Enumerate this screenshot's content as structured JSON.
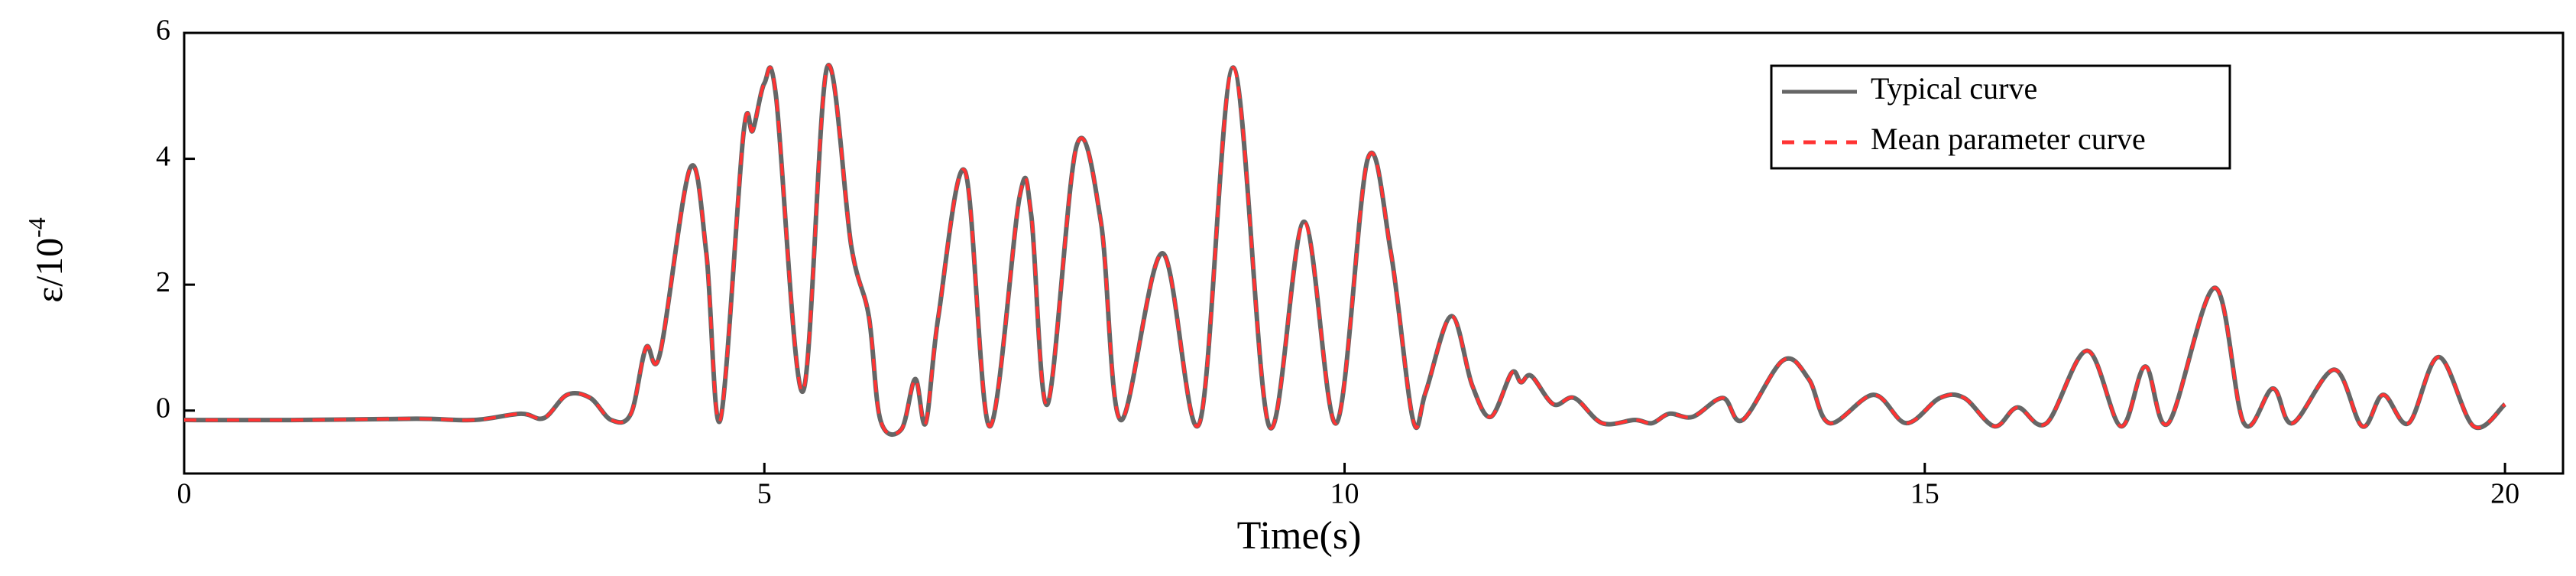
{
  "chart_data": {
    "type": "line",
    "xlabel": "Time(s)",
    "ylabel": "ε/10",
    "ylabel_superscript": "-4",
    "x": [
      0,
      1,
      2,
      2.5,
      2.9,
      3.1,
      3.3,
      3.5,
      3.68,
      3.85,
      3.98,
      4.1,
      4.36,
      4.5,
      4.62,
      4.82,
      4.9,
      5.0,
      5.1,
      5.33,
      5.54,
      5.75,
      5.9,
      6.0,
      6.18,
      6.3,
      6.39,
      6.5,
      6.73,
      6.94,
      7.2,
      7.3,
      7.44,
      7.69,
      7.9,
      8.07,
      8.43,
      8.75,
      9.04,
      9.35,
      9.65,
      9.93,
      10.2,
      10.4,
      10.59,
      10.7,
      10.92,
      11.1,
      11.26,
      11.44,
      11.52,
      11.61,
      11.8,
      11.98,
      12.22,
      12.5,
      12.65,
      12.8,
      13.0,
      13.26,
      13.43,
      13.78,
      14.0,
      14.18,
      14.56,
      14.84,
      15.13,
      15.34,
      15.6,
      15.8,
      16.05,
      16.4,
      16.69,
      16.9,
      17.1,
      17.5,
      17.75,
      18.0,
      18.17,
      18.53,
      18.77,
      18.95,
      19.17,
      19.43,
      19.73,
      20.0
    ],
    "series": [
      {
        "name": "Typical curve",
        "color": "#666666",
        "style": "solid",
        "values": [
          -0.15,
          -0.15,
          -0.13,
          -0.15,
          -0.05,
          -0.12,
          0.25,
          0.2,
          -0.15,
          -0.05,
          1.0,
          0.9,
          3.85,
          2.5,
          -0.15,
          4.4,
          4.45,
          5.2,
          5.0,
          0.3,
          5.45,
          2.6,
          1.5,
          -0.15,
          -0.3,
          0.5,
          -0.2,
          1.5,
          3.8,
          -0.25,
          3.4,
          3.1,
          0.1,
          4.2,
          3.0,
          -0.15,
          2.5,
          -0.2,
          5.45,
          -0.25,
          3.0,
          -0.2,
          4.0,
          2.5,
          -0.15,
          0.3,
          1.5,
          0.4,
          -0.1,
          0.6,
          0.45,
          0.55,
          0.1,
          0.2,
          -0.2,
          -0.15,
          -0.2,
          -0.05,
          -0.1,
          0.2,
          -0.15,
          0.8,
          0.5,
          -0.2,
          0.25,
          -0.2,
          0.2,
          0.2,
          -0.25,
          0.05,
          -0.2,
          0.95,
          -0.25,
          0.7,
          -0.2,
          1.95,
          -0.2,
          0.35,
          -0.2,
          0.65,
          -0.25,
          0.25,
          -0.2,
          0.85,
          -0.25,
          0.1
        ]
      },
      {
        "name": "Mean parameter curve",
        "color": "#ff3333",
        "style": "dashed",
        "values": [
          -0.15,
          -0.15,
          -0.13,
          -0.15,
          -0.05,
          -0.12,
          0.25,
          0.2,
          -0.15,
          -0.05,
          1.0,
          0.9,
          3.85,
          2.5,
          -0.15,
          4.4,
          4.45,
          5.2,
          5.0,
          0.3,
          5.45,
          2.6,
          1.5,
          -0.15,
          -0.3,
          0.5,
          -0.2,
          1.5,
          3.8,
          -0.25,
          3.4,
          3.1,
          0.1,
          4.2,
          3.0,
          -0.15,
          2.5,
          -0.2,
          5.45,
          -0.25,
          3.0,
          -0.2,
          4.0,
          2.5,
          -0.15,
          0.3,
          1.5,
          0.4,
          -0.1,
          0.6,
          0.45,
          0.55,
          0.1,
          0.2,
          -0.2,
          -0.15,
          -0.2,
          -0.05,
          -0.1,
          0.2,
          -0.15,
          0.8,
          0.5,
          -0.2,
          0.25,
          -0.2,
          0.2,
          0.2,
          -0.25,
          0.05,
          -0.2,
          0.95,
          -0.25,
          0.7,
          -0.2,
          1.95,
          -0.2,
          0.35,
          -0.2,
          0.65,
          -0.25,
          0.25,
          -0.2,
          0.85,
          -0.25,
          0.1
        ]
      }
    ],
    "xlim": [
      0,
      20.5
    ],
    "xticks": [
      0,
      5,
      10,
      15,
      20
    ],
    "ylim": [
      -1,
      6
    ],
    "yticks": [
      0,
      2,
      4,
      6
    ],
    "grid": false,
    "legend": "upper right"
  }
}
